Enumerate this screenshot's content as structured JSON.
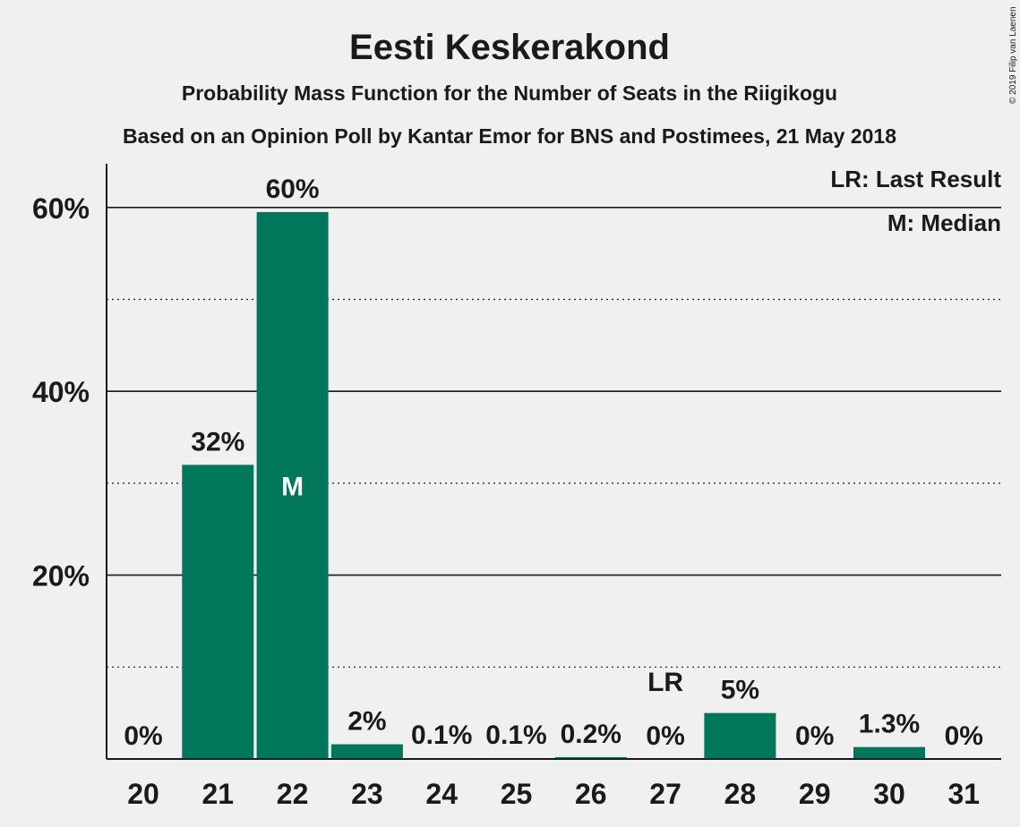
{
  "chart_data": {
    "type": "bar",
    "title": "Eesti Keskerakond",
    "subtitle1": "Probability Mass Function for the Number of Seats in the Riigikogu",
    "subtitle2": "Based on an Opinion Poll by Kantar Emor for BNS and Postimees, 21 May 2018",
    "copyright": "© 2019 Filip van Laenen",
    "categories": [
      "20",
      "21",
      "22",
      "23",
      "24",
      "25",
      "26",
      "27",
      "28",
      "29",
      "30",
      "31"
    ],
    "values": [
      0,
      32.0,
      59.5,
      1.6,
      0.1,
      0.1,
      0.2,
      0,
      5.0,
      0,
      1.3,
      0
    ],
    "value_labels": [
      "0%",
      "32%",
      "60%",
      "2%",
      "0.1%",
      "0.1%",
      "0.2%",
      "0%",
      "5%",
      "0%",
      "1.3%",
      "0%"
    ],
    "ylim": [
      0,
      65
    ],
    "y_major_ticks": [
      20,
      40,
      60
    ],
    "y_major_labels": [
      "20%",
      "40%",
      "60%"
    ],
    "y_minor_ticks": [
      10,
      30,
      50
    ],
    "median": {
      "category": "22",
      "label": "M"
    },
    "last_result": {
      "category": "27",
      "label": "LR"
    },
    "legend": [
      "LR: Last Result",
      "M: Median"
    ],
    "legend_position": "top-right",
    "bar_color": "#00765a",
    "xlabel": "",
    "ylabel": ""
  }
}
